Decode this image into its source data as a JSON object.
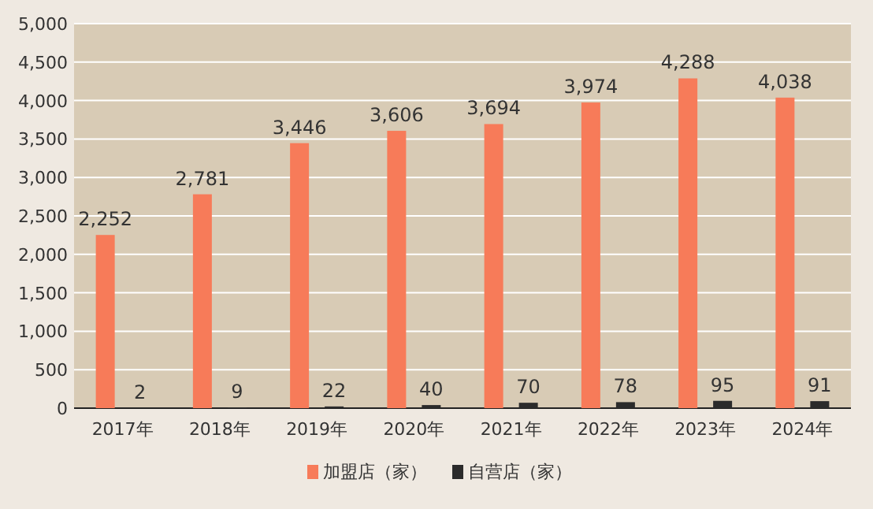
{
  "chart_data": {
    "type": "bar",
    "categories": [
      "2017年",
      "2018年",
      "2019年",
      "2020年",
      "2021年",
      "2022年",
      "2023年",
      "2024年"
    ],
    "series": [
      {
        "name": "加盟店（家）",
        "color": "#f77b59",
        "values": [
          2252,
          2781,
          3446,
          3606,
          3694,
          3974,
          4288,
          4038
        ],
        "value_labels": [
          "2,252",
          "2,781",
          "3,446",
          "3,606",
          "3,694",
          "3,974",
          "4,288",
          "4,038"
        ]
      },
      {
        "name": "自营店（家）",
        "color": "#2b2b2b",
        "values": [
          2,
          9,
          22,
          40,
          70,
          78,
          95,
          91
        ],
        "value_labels": [
          "2",
          "9",
          "22",
          "40",
          "70",
          "78",
          "95",
          "91"
        ]
      }
    ],
    "ylim": [
      0,
      5000
    ],
    "yticks": [
      {
        "value": 0,
        "label": "0"
      },
      {
        "value": 500,
        "label": "500"
      },
      {
        "value": 1000,
        "label": "1,000"
      },
      {
        "value": 1500,
        "label": "1,500"
      },
      {
        "value": 2000,
        "label": "2,000"
      },
      {
        "value": 2500,
        "label": "2,500"
      },
      {
        "value": 3000,
        "label": "3,000"
      },
      {
        "value": 3500,
        "label": "3,500"
      },
      {
        "value": 4000,
        "label": "4,000"
      },
      {
        "value": 4500,
        "label": "4,500"
      },
      {
        "value": 5000,
        "label": "5,000"
      }
    ],
    "grid": "y",
    "legend": "bottom"
  }
}
